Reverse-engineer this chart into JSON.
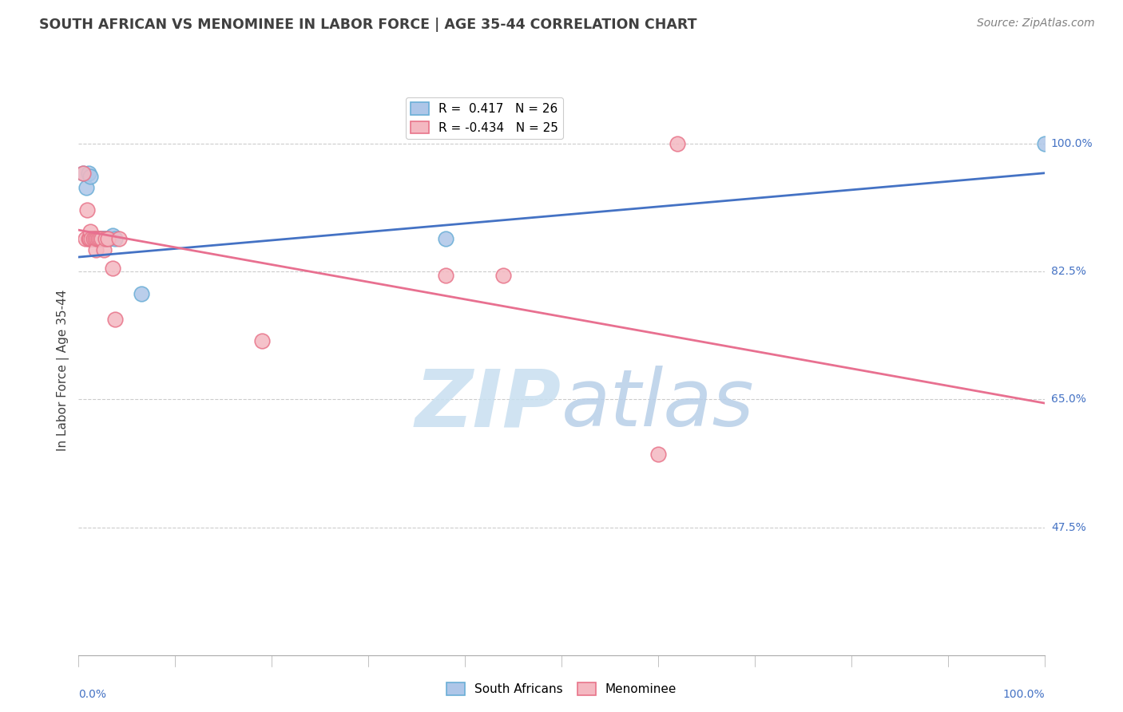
{
  "title": "SOUTH AFRICAN VS MENOMINEE IN LABOR FORCE | AGE 35-44 CORRELATION CHART",
  "source": "Source: ZipAtlas.com",
  "ylabel": "In Labor Force | Age 35-44",
  "legend_blue_r": "R =  0.417",
  "legend_blue_n": "N = 26",
  "legend_pink_r": "R = -0.434",
  "legend_pink_n": "N = 25",
  "blue_x": [
    0.005,
    0.008,
    0.01,
    0.012,
    0.013,
    0.015,
    0.016,
    0.017,
    0.018,
    0.019,
    0.02,
    0.021,
    0.022,
    0.023,
    0.024,
    0.025,
    0.026,
    0.027,
    0.028,
    0.03,
    0.032,
    0.035,
    0.038,
    0.065,
    0.38,
    1.0
  ],
  "blue_y": [
    0.96,
    0.94,
    0.96,
    0.955,
    0.87,
    0.87,
    0.87,
    0.87,
    0.87,
    0.87,
    0.87,
    0.87,
    0.87,
    0.87,
    0.87,
    0.87,
    0.87,
    0.87,
    0.87,
    0.87,
    0.87,
    0.875,
    0.87,
    0.795,
    0.87,
    1.0
  ],
  "pink_x": [
    0.005,
    0.007,
    0.009,
    0.01,
    0.011,
    0.012,
    0.013,
    0.015,
    0.017,
    0.018,
    0.019,
    0.02,
    0.022,
    0.024,
    0.026,
    0.028,
    0.03,
    0.035,
    0.038,
    0.042,
    0.19,
    0.38,
    0.44,
    0.6,
    0.62
  ],
  "pink_y": [
    0.96,
    0.87,
    0.91,
    0.87,
    0.87,
    0.88,
    0.87,
    0.87,
    0.87,
    0.855,
    0.87,
    0.87,
    0.87,
    0.87,
    0.855,
    0.87,
    0.87,
    0.83,
    0.76,
    0.87,
    0.73,
    0.82,
    0.82,
    0.575,
    1.0
  ],
  "blue_line_x": [
    0.0,
    1.0
  ],
  "blue_line_y": [
    0.845,
    0.96
  ],
  "pink_line_x": [
    0.0,
    1.0
  ],
  "pink_line_y": [
    0.882,
    0.645
  ],
  "xlim": [
    0.0,
    1.0
  ],
  "ylim": [
    0.3,
    1.08
  ],
  "ytick_positions": [
    0.475,
    0.65,
    0.825,
    1.0
  ],
  "ytick_labels": [
    "47.5%",
    "65.0%",
    "82.5%",
    "100.0%"
  ],
  "bg_color": "#ffffff",
  "blue_color": "#aec6e8",
  "blue_edge": "#6aaed6",
  "pink_color": "#f4b8c1",
  "pink_edge": "#e8748a",
  "blue_line_color": "#4472c4",
  "pink_line_color": "#e87090",
  "grid_color": "#cccccc",
  "title_color": "#404040",
  "source_color": "#808080",
  "watermark_color": "#ddeef8",
  "axis_label_color": "#4472c4"
}
